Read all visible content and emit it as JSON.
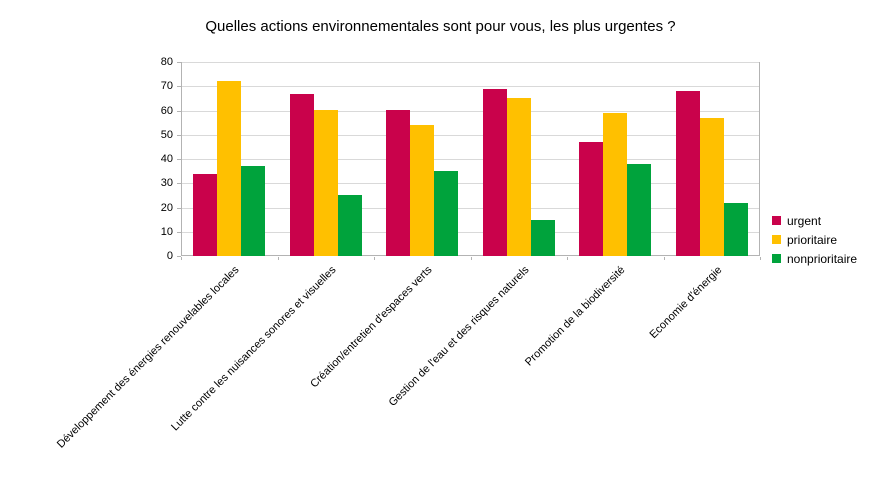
{
  "chart_data": {
    "type": "bar",
    "title": "Quelles actions environnementales sont pour vous, les plus urgentes ?",
    "categories": [
      "Développement des énergies renouvelables locales",
      "Lutte contre les nuisances sonores et visuelles",
      "Création/entretien d'espaces verts",
      "Gestion de l'eau et des risques naturels",
      "Promotion de la biodiversité",
      "Economie d'énergie"
    ],
    "series": [
      {
        "name": "urgent",
        "color": "#C9024B",
        "values": [
          34,
          67,
          60,
          69,
          47,
          68
        ]
      },
      {
        "name": "prioritaire",
        "color": "#FFC000",
        "values": [
          72,
          60,
          54,
          65,
          59,
          57
        ]
      },
      {
        "name": "nonprioritaire",
        "color": "#00A33C",
        "values": [
          37,
          25,
          35,
          15,
          38,
          22
        ]
      }
    ],
    "ylim": [
      0,
      80
    ],
    "ytick_step": 10,
    "yticklabels": [
      "0",
      "10",
      "20",
      "30",
      "40",
      "50",
      "60",
      "70",
      "80"
    ],
    "xlabel": "",
    "ylabel": "",
    "grid": "horizontal",
    "legend_position": "right",
    "colors": {
      "background": "#ffffff",
      "gridline": "#d9d9d9",
      "axis": "#b3b3b3",
      "text": "#000000"
    }
  }
}
